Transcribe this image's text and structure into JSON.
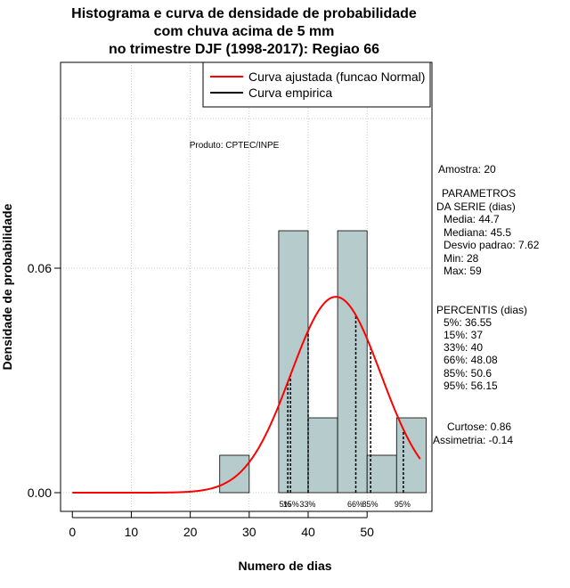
{
  "chart_data": {
    "type": "histogram",
    "title_lines": [
      "Histograma e curva de densidade de probabilidade",
      "com chuva acima de 5 mm",
      "no trimestre DJF (1998-2017): Regiao 66"
    ],
    "xlabel": "Numero de dias",
    "ylabel": "Densidade de probabilidade",
    "xlim": [
      -2,
      61
    ],
    "ylim": [
      -0.005,
      0.115
    ],
    "xticks": [
      0,
      10,
      20,
      30,
      40,
      50
    ],
    "yticks": [
      0.0,
      0.06
    ],
    "ytick_labels": [
      "0.00",
      "0.06"
    ],
    "x_gridlines": [
      10,
      20,
      30,
      40,
      50
    ],
    "y_gridlines": [
      0.0,
      0.06,
      0.1
    ],
    "bins": [
      {
        "x0": 25,
        "x1": 30,
        "density": 0.01
      },
      {
        "x0": 30,
        "x1": 35,
        "density": 0.0
      },
      {
        "x0": 35,
        "x1": 40,
        "density": 0.07
      },
      {
        "x0": 40,
        "x1": 45,
        "density": 0.02
      },
      {
        "x0": 45,
        "x1": 50,
        "density": 0.07
      },
      {
        "x0": 50,
        "x1": 55,
        "density": 0.01
      },
      {
        "x0": 55,
        "x1": 60,
        "density": 0.02
      }
    ],
    "normal_fit": {
      "mean": 44.7,
      "sd": 7.62,
      "x_from": 0,
      "x_to": 59
    },
    "percentile_lines": [
      {
        "label": "5%",
        "value": 36.55
      },
      {
        "label": "15%",
        "value": 37
      },
      {
        "label": "33%",
        "value": 40
      },
      {
        "label": "66%",
        "value": 48.08
      },
      {
        "label": "85%",
        "value": 50.6
      },
      {
        "label": "95%",
        "value": 56.15
      }
    ],
    "percentile_label_texts": [
      {
        "text": "5%",
        "x": 36.1
      },
      {
        "text": "15%",
        "x": 37.1
      },
      {
        "text": "33%",
        "x": 39.9
      },
      {
        "text": "66%",
        "x": 48.0
      },
      {
        "text": "85%",
        "x": 50.5
      },
      {
        "text": "95%",
        "x": 56.0
      }
    ],
    "legend": [
      {
        "label": "Curva ajustada (funcao Normal)",
        "color": "#ff0000"
      },
      {
        "label": "Curva empirica",
        "color": "#000000"
      }
    ],
    "legend_position": "top-right",
    "product_text": "Produto: CPTEC/INPE",
    "colors": {
      "bar_fill": "#b6cccc",
      "curve": "#ff0000",
      "grid": "#bbbbbb"
    }
  },
  "side_panel": {
    "amostra": "Amostra: 20",
    "parametros_title": "PARAMETROS",
    "parametros_subtitle": "DA SERIE (dias)",
    "media": "Media: 44.7",
    "mediana": "Mediana: 45.5",
    "desvio": "Desvio padrao: 7.62",
    "min": "Min: 28",
    "max": "Max: 59",
    "percentis_title": "PERCENTIS (dias)",
    "p5": "5%: 36.55",
    "p15": "15%: 37",
    "p33": "33%: 40",
    "p66": "66%: 48.08",
    "p85": "85%: 50.6",
    "p95": "95%: 56.15",
    "curtose": "Curtose: 0.86",
    "assimetria": "Assimetria: -0.14"
  }
}
